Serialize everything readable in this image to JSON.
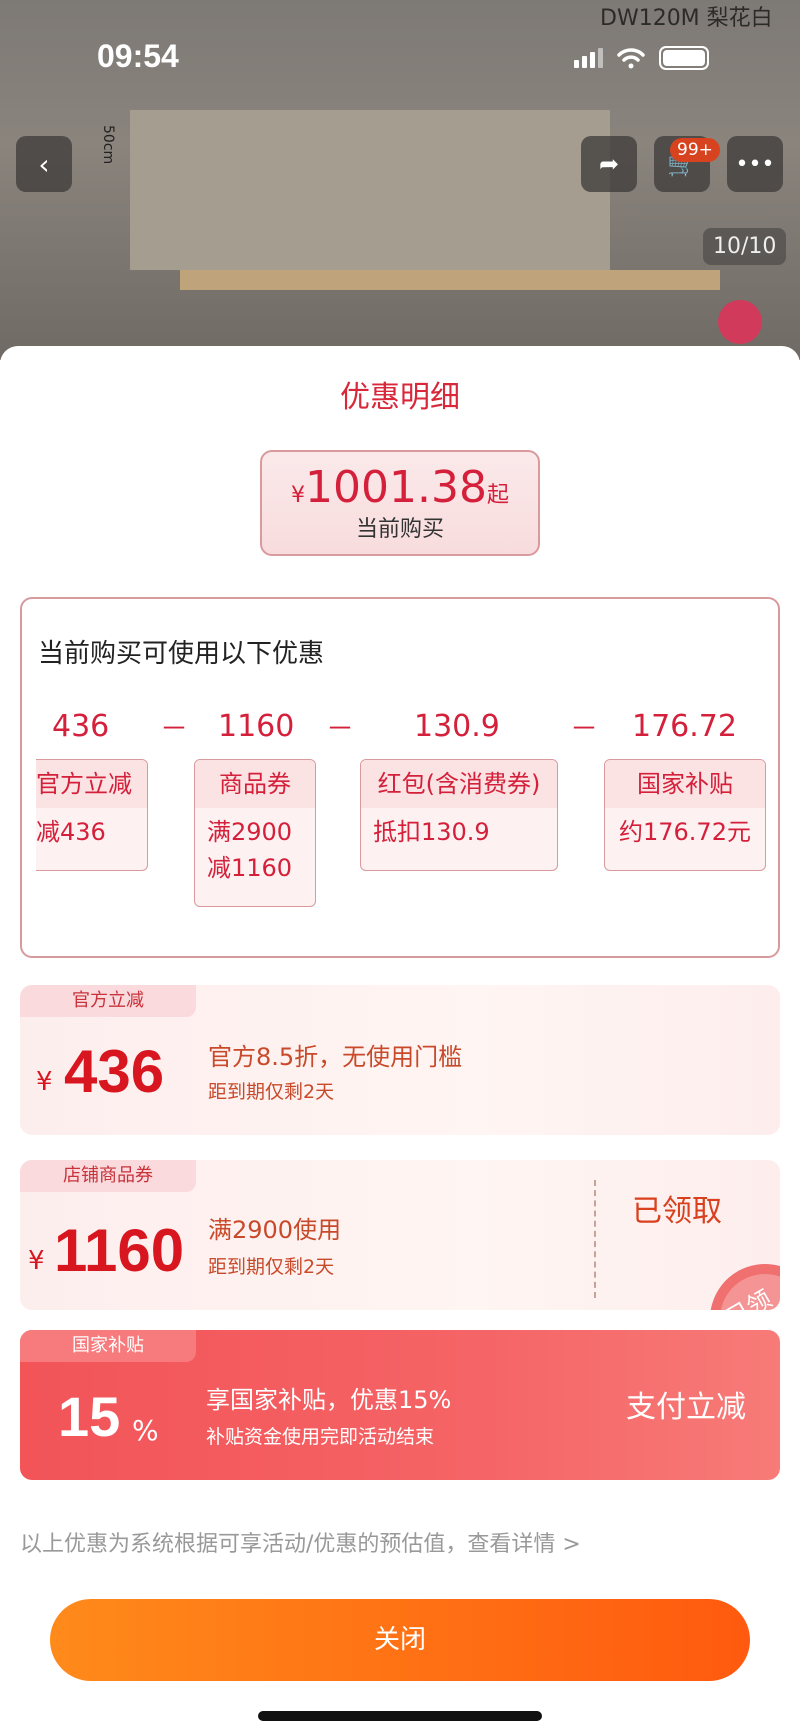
{
  "status": {
    "time": "09:54"
  },
  "hero": {
    "model_label": "DW120M 梨花白",
    "dimension": "50cm",
    "cart_badge": "99+",
    "counter": "10/10"
  },
  "sheet": {
    "title": "优惠明细",
    "price": {
      "currency": "¥",
      "value": "1001.38",
      "suffix": "起",
      "caption": "当前购买"
    },
    "breakdown": {
      "heading": "当前购买可使用以下优惠",
      "amounts": [
        "436",
        "1160",
        "130.9",
        "176.72"
      ],
      "minus": "－",
      "chips": [
        {
          "title": "官方立减",
          "lines": [
            "减436"
          ]
        },
        {
          "title": "商品券",
          "lines": [
            "满2900",
            "减1160"
          ]
        },
        {
          "title": "红包(含消费券)",
          "lines": [
            "抵扣130.9"
          ]
        },
        {
          "title": "国家补贴",
          "lines": [
            "约176.72元"
          ]
        }
      ]
    },
    "cards": [
      {
        "tag": "官方立减",
        "currency": "¥",
        "amount": "436",
        "line1": "官方8.5折，无使用门槛",
        "line2": "距到期仅剩2天"
      },
      {
        "tag": "店铺商品券",
        "currency": "¥",
        "amount": "1160",
        "line1": "满2900使用",
        "line2": "距到期仅剩2天",
        "action": "已领取",
        "stamp": "已领"
      },
      {
        "tag": "国家补贴",
        "amount": "15",
        "unit": "%",
        "line1": "享国家补贴，优惠15%",
        "line2": "补贴资金使用完即活动结束",
        "action": "支付立减"
      }
    ],
    "footer": "以上优惠为系统根据可享活动/优惠的预估值，查看详情 >",
    "close": "关闭"
  },
  "colors": {
    "accent": "#d4203a",
    "close_button": "#ff6a14",
    "subsidy_card": "#f25458"
  }
}
